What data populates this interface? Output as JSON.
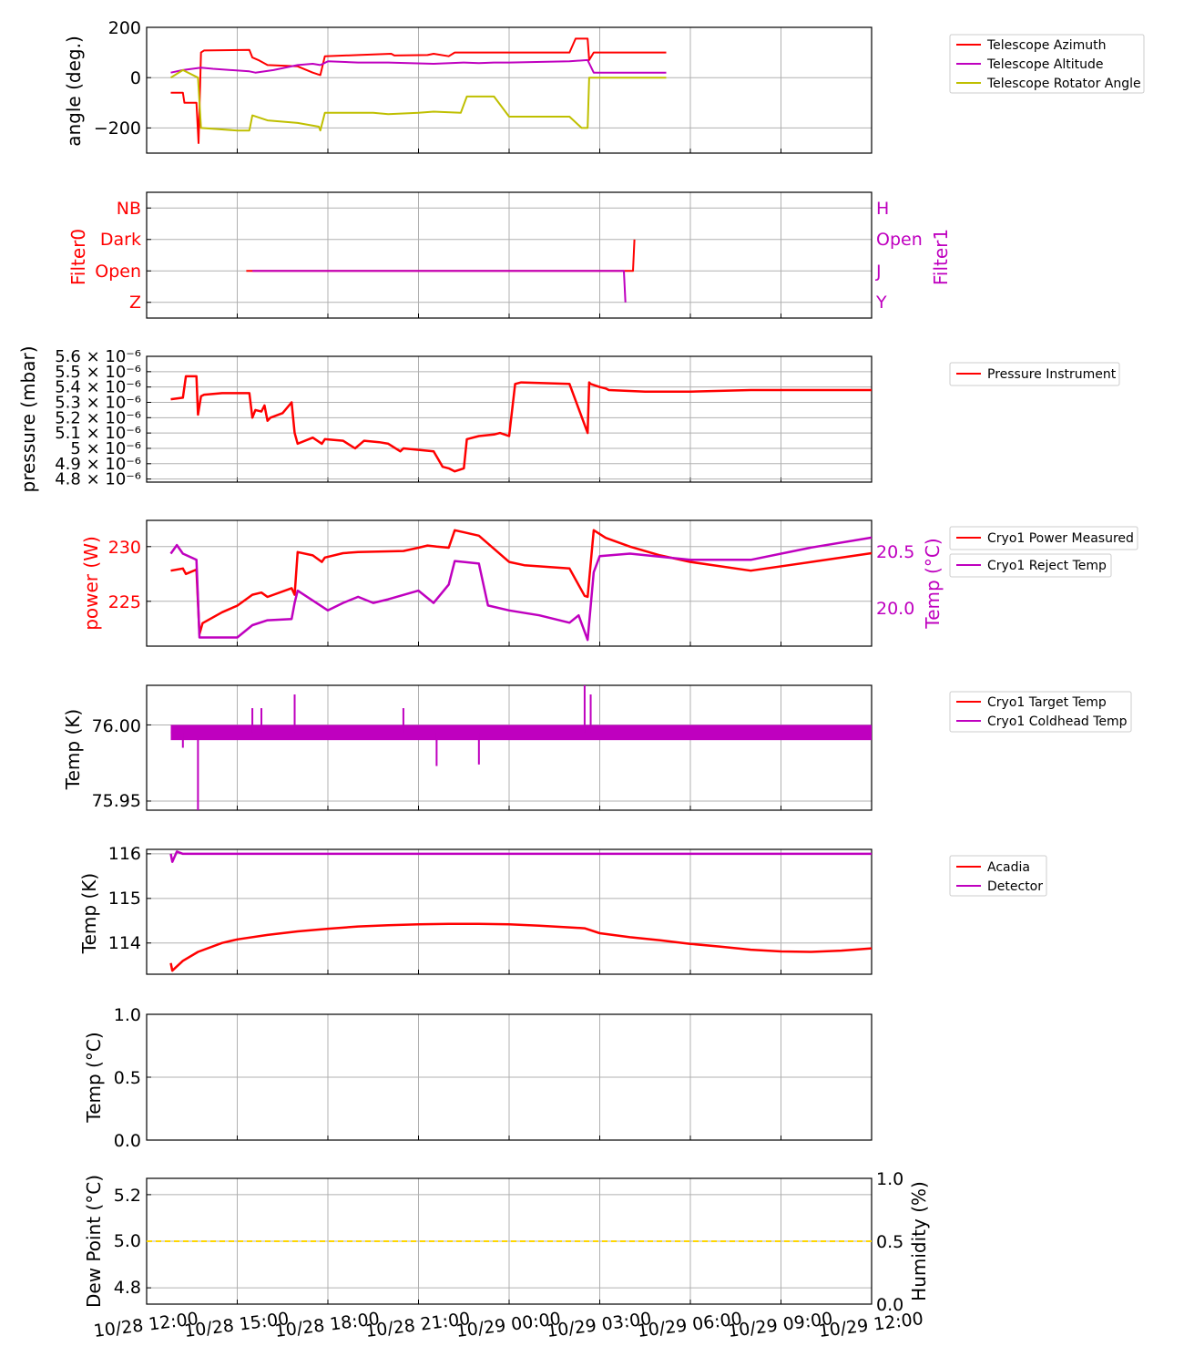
{
  "chart_data": {
    "type": "line",
    "shared_x": {
      "unit": "hours since 10/28 12:00",
      "range": [
        0,
        24
      ],
      "ticks": [
        0,
        3,
        6,
        9,
        12,
        15,
        18,
        21,
        24
      ],
      "tick_labels": [
        "10/28 12:00",
        "10/28 15:00",
        "10/28 18:00",
        "10/28 21:00",
        "10/29 00:00",
        "10/29 03:00",
        "10/29 06:00",
        "10/29 09:00",
        "10/29 12:00"
      ]
    },
    "panels": [
      {
        "id": "angles",
        "ylabel": "angle (deg.)",
        "ylim": [
          -300,
          200
        ],
        "yticks": [
          200,
          0,
          -200
        ],
        "ytick_labels": [
          "200",
          "0",
          "−200"
        ],
        "legend": [
          "Telescope Azimuth",
          "Telescope Altitude",
          "Telescope Rotator Angle"
        ],
        "series": [
          {
            "name": "Telescope Azimuth",
            "color": "#ff0000",
            "x": [
              0.8,
              1.2,
              1.25,
              1.65,
              1.72,
              1.8,
              1.9,
              3.4,
              3.5,
              3.7,
              4.0,
              5.0,
              5.1,
              5.5,
              5.75,
              5.9,
              7.0,
              8.1,
              8.2,
              9.3,
              9.5,
              10.0,
              10.2,
              10.5,
              11.0,
              12.0,
              14.0,
              14.2,
              14.6,
              14.65,
              14.8,
              17.2
            ],
            "y": [
              -60,
              -60,
              -100,
              -100,
              -260,
              100,
              108,
              110,
              80,
              70,
              50,
              45,
              40,
              20,
              10,
              85,
              90,
              95,
              88,
              90,
              95,
              85,
              100,
              100,
              100,
              100,
              100,
              155,
              155,
              70,
              100,
              100
            ]
          },
          {
            "name": "Telescope Altitude",
            "color": "#bf00bf",
            "x": [
              0.8,
              1.2,
              1.8,
              2.2,
              3.4,
              3.6,
              4.2,
              5.0,
              5.5,
              5.75,
              6.0,
              7.0,
              8.0,
              9.5,
              10.5,
              11.0,
              11.5,
              12.0,
              14.0,
              14.6,
              14.8,
              17.2
            ],
            "y": [
              20,
              30,
              40,
              35,
              25,
              20,
              30,
              50,
              55,
              50,
              65,
              60,
              60,
              55,
              60,
              58,
              60,
              60,
              65,
              70,
              20,
              20
            ]
          },
          {
            "name": "Telescope Rotator Angle",
            "color": "#bfbf00",
            "x": [
              0.8,
              1.2,
              1.7,
              1.8,
              3.0,
              3.4,
              3.5,
              4.0,
              4.5,
              5.0,
              5.7,
              5.75,
              5.9,
              7.5,
              8.0,
              9.0,
              9.5,
              10.4,
              10.6,
              11.5,
              12.0,
              14.0,
              14.4,
              14.6,
              14.65,
              17.2
            ],
            "y": [
              0,
              30,
              0,
              -200,
              -210,
              -210,
              -150,
              -170,
              -175,
              -180,
              -195,
              -210,
              -140,
              -140,
              -145,
              -140,
              -135,
              -140,
              -75,
              -75,
              -155,
              -155,
              -200,
              -200,
              0,
              0
            ]
          }
        ]
      },
      {
        "id": "filters",
        "ylabel_left": "Filter0",
        "ylabel_right": "Filter1",
        "left_color": "#ff0000",
        "right_color": "#bf00bf",
        "ylim": [
          -0.5,
          3.5
        ],
        "left_ticks": [
          "Z",
          "Open",
          "Dark",
          "NB"
        ],
        "right_ticks": [
          "Y",
          "J",
          "Open",
          "H"
        ],
        "series": [
          {
            "name": "Filter0",
            "color": "#ff0000",
            "x": [
              3.3,
              13.0,
              13.05,
              16.1,
              16.15
            ],
            "y": [
              1,
              1,
              1,
              1,
              2
            ]
          },
          {
            "name": "Filter1",
            "color": "#bf00bf",
            "x": [
              3.5,
              15.8,
              15.85
            ],
            "y": [
              1,
              1,
              0
            ]
          }
        ]
      },
      {
        "id": "pressure",
        "ylabel": "pressure (mbar)",
        "ylim": [
          4.78e-06,
          5.6e-06
        ],
        "yticks": [
          5.6e-06,
          5.5e-06,
          5.4e-06,
          5.3e-06,
          5.2e-06,
          5.1e-06,
          5e-06,
          4.9e-06,
          4.8e-06
        ],
        "ytick_labels": [
          "5.6 × 10⁻⁶",
          "5.5 × 10⁻⁶",
          "5.4 × 10⁻⁶",
          "5.3 × 10⁻⁶",
          "5.2 × 10⁻⁶",
          "5.1 × 10⁻⁶",
          "5 × 10⁻⁶",
          "4.9 × 10⁻⁶",
          "4.8 × 10⁻⁶"
        ],
        "legend": [
          "Pressure Instrument"
        ],
        "series": [
          {
            "name": "Pressure Instrument",
            "color": "#ff0000",
            "x": [
              0.8,
              1.2,
              1.3,
              1.65,
              1.7,
              1.8,
              1.9,
              2.5,
              3.4,
              3.5,
              3.6,
              3.8,
              3.9,
              4.0,
              4.1,
              4.5,
              4.8,
              4.9,
              5.0,
              5.5,
              5.8,
              5.9,
              6.5,
              6.9,
              7.2,
              7.7,
              8.0,
              8.4,
              8.5,
              9.5,
              9.8,
              10.0,
              10.2,
              10.5,
              10.6,
              11.0,
              11.5,
              11.7,
              12.0,
              12.2,
              12.4,
              14.0,
              14.6,
              14.65,
              14.7,
              15.0,
              15.2,
              15.3,
              16.5,
              17.0,
              18.0,
              20.0,
              21.0,
              22.0,
              24.0
            ],
            "y": [
              5.32e-06,
              5.33e-06,
              5.47e-06,
              5.47e-06,
              5.22e-06,
              5.34e-06,
              5.35e-06,
              5.36e-06,
              5.36e-06,
              5.2e-06,
              5.25e-06,
              5.24e-06,
              5.28e-06,
              5.18e-06,
              5.2e-06,
              5.23e-06,
              5.3e-06,
              5.1e-06,
              5.03e-06,
              5.07e-06,
              5.03e-06,
              5.06e-06,
              5.05e-06,
              5e-06,
              5.05e-06,
              5.04e-06,
              5.03e-06,
              4.98e-06,
              5e-06,
              4.98e-06,
              4.88e-06,
              4.87e-06,
              4.85e-06,
              4.87e-06,
              5.06e-06,
              5.08e-06,
              5.09e-06,
              5.1e-06,
              5.08e-06,
              5.42e-06,
              5.43e-06,
              5.42e-06,
              5.1e-06,
              5.43e-06,
              5.42e-06,
              5.4e-06,
              5.39e-06,
              5.38e-06,
              5.37e-06,
              5.37e-06,
              5.37e-06,
              5.38e-06,
              5.38e-06,
              5.38e-06,
              5.38e-06
            ]
          }
        ]
      },
      {
        "id": "cryo-power",
        "ylabel_left": "power (W)",
        "ylabel_right": "Temp (°C)",
        "left_color": "#ff0000",
        "right_color": "#bf00bf",
        "ylim_left": [
          220.9,
          232.4
        ],
        "left_ticks": [
          230,
          225
        ],
        "ylim_right": [
          19.75,
          20.77
        ],
        "right_ticks": [
          20.5,
          20.0
        ],
        "right_tick_labels": [
          "20.5",
          "20.0"
        ],
        "legend": [
          "Cryo1 Power Measured",
          "Cryo1 Reject Temp"
        ],
        "series": [
          {
            "name": "Cryo1 Power Measured",
            "axis": "left",
            "color": "#ff0000",
            "x": [
              0.8,
              1.2,
              1.3,
              1.65,
              1.75,
              1.85,
              2.5,
              3.0,
              3.5,
              3.8,
              4.0,
              4.8,
              4.9,
              5.0,
              5.5,
              5.8,
              5.9,
              6.5,
              7.0,
              8.5,
              9.0,
              9.3,
              9.6,
              10.0,
              10.2,
              11.0,
              12.0,
              12.5,
              14.0,
              14.5,
              14.6,
              14.8,
              15.2,
              16.0,
              17.0,
              18.0,
              20.0,
              22.0,
              24.0
            ],
            "y": [
              227.8,
              228.0,
              227.5,
              227.9,
              222.0,
              223.0,
              224.0,
              224.6,
              225.6,
              225.8,
              225.4,
              226.2,
              225.6,
              229.5,
              229.2,
              228.6,
              229.0,
              229.4,
              229.5,
              229.6,
              229.9,
              230.1,
              230.0,
              229.9,
              231.5,
              231.0,
              228.6,
              228.3,
              228.0,
              225.5,
              225.4,
              231.5,
              230.8,
              230.0,
              229.2,
              228.6,
              227.8,
              228.6,
              229.4
            ]
          },
          {
            "name": "Cryo1 Reject Temp",
            "axis": "right",
            "color": "#bf00bf",
            "x": [
              0.8,
              1.0,
              1.2,
              1.65,
              1.75,
              2.0,
              3.0,
              3.5,
              4.0,
              4.8,
              4.9,
              5.0,
              5.5,
              6.0,
              6.5,
              7.0,
              7.5,
              8.0,
              9.0,
              9.5,
              10.0,
              10.2,
              11.0,
              11.3,
              12.0,
              13.0,
              14.0,
              14.3,
              14.6,
              14.8,
              15.0,
              16.0,
              18.0,
              20.0,
              22.0,
              24.0
            ],
            "y": [
              20.5,
              20.57,
              20.5,
              20.45,
              19.82,
              19.82,
              19.82,
              19.92,
              19.96,
              19.97,
              20.1,
              20.2,
              20.12,
              20.04,
              20.1,
              20.15,
              20.1,
              20.13,
              20.2,
              20.1,
              20.25,
              20.44,
              20.42,
              20.08,
              20.04,
              20.0,
              19.94,
              20.0,
              19.8,
              20.35,
              20.48,
              20.5,
              20.45,
              20.45,
              20.55,
              20.63
            ]
          }
        ]
      },
      {
        "id": "cryo-temps",
        "ylabel": "Temp (K)",
        "ylim": [
          75.944,
          76.026
        ],
        "yticks": [
          76.0,
          75.95
        ],
        "ytick_labels": [
          "76.00",
          "75.95"
        ],
        "legend": [
          "Cryo1 Target Temp",
          "Cryo1 Coldhead Temp"
        ],
        "series": [
          {
            "name": "Cryo1 Target Temp",
            "color": "#ff0000",
            "x": [
              0.8,
              24.0
            ],
            "y": [
              75.995,
              75.995
            ]
          },
          {
            "name": "Cryo1 Coldhead Temp",
            "color": "#bf00bf",
            "x": [
              0.8,
              24.0
            ],
            "y": [
              75.995,
              75.995
            ],
            "band": [
              75.99,
              76.0
            ]
          }
        ],
        "spikes": [
          {
            "x": 1.2,
            "y": 75.985
          },
          {
            "x": 1.7,
            "y": 75.944
          },
          {
            "x": 3.5,
            "y": 76.011
          },
          {
            "x": 3.8,
            "y": 76.011
          },
          {
            "x": 4.9,
            "y": 76.02
          },
          {
            "x": 8.5,
            "y": 76.011
          },
          {
            "x": 9.6,
            "y": 75.973
          },
          {
            "x": 11.0,
            "y": 75.974
          },
          {
            "x": 14.5,
            "y": 76.026
          },
          {
            "x": 14.7,
            "y": 76.02
          }
        ]
      },
      {
        "id": "acadia-detector",
        "ylabel": "Temp (K)",
        "ylim": [
          113.3,
          116.1
        ],
        "yticks": [
          116,
          115,
          114
        ],
        "legend": [
          "Acadia",
          "Detector"
        ],
        "series": [
          {
            "name": "Acadia",
            "color": "#ff0000",
            "x": [
              0.8,
              0.85,
              1.2,
              1.7,
              2.5,
              3.0,
              4.0,
              5.0,
              6.0,
              7.0,
              8.0,
              9.0,
              10.0,
              11.0,
              12.0,
              13.0,
              14.0,
              14.5,
              15.0,
              16.0,
              17.0,
              18.0,
              19.0,
              20.0,
              21.0,
              22.0,
              23.0,
              24.0
            ],
            "y": [
              113.55,
              113.38,
              113.6,
              113.8,
              114.0,
              114.08,
              114.18,
              114.26,
              114.32,
              114.37,
              114.4,
              114.42,
              114.43,
              114.43,
              114.42,
              114.39,
              114.35,
              114.33,
              114.22,
              114.13,
              114.06,
              113.98,
              113.92,
              113.85,
              113.81,
              113.8,
              113.83,
              113.88
            ]
          },
          {
            "name": "Detector",
            "color": "#bf00bf",
            "x": [
              0.8,
              0.85,
              1.0,
              1.2,
              24.0
            ],
            "y": [
              116.0,
              115.82,
              116.05,
              116.0,
              116.0
            ]
          }
        ]
      },
      {
        "id": "outside-temp",
        "ylabel": "Temp (°C)",
        "ylim": [
          0.0,
          1.0
        ],
        "yticks": [
          1.0,
          0.5,
          0.0
        ],
        "ytick_labels": [
          "1.0",
          "0.5",
          "0.0"
        ],
        "series": []
      },
      {
        "id": "dewpoint-humidity",
        "ylabel_left": "Dew Point (°C)",
        "ylabel_right": "Humidity (%)",
        "ylim_left": [
          4.73,
          5.27
        ],
        "left_ticks": [
          5.2,
          5.0,
          4.8
        ],
        "left_tick_labels": [
          "5.2",
          "5.0",
          "4.8"
        ],
        "ylim_right": [
          0.0,
          1.0
        ],
        "right_ticks": [
          1.0,
          0.5,
          0.0
        ],
        "right_tick_labels": [
          "1.0",
          "0.5",
          "0.0"
        ],
        "series": [
          {
            "name": "Dew Point",
            "axis": "left",
            "color": "#ffd700",
            "style": "dashed",
            "x": [
              0,
              24
            ],
            "y": [
              5.0,
              5.0
            ]
          }
        ]
      }
    ]
  }
}
